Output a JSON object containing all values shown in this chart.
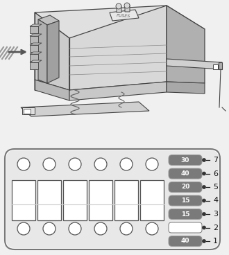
{
  "bg_color": "#f0f0f0",
  "fuses": [
    {
      "label": "30",
      "color": "#7a7a7a",
      "number": 7,
      "has_fuse": true
    },
    {
      "label": "40",
      "color": "#7a7a7a",
      "number": 6,
      "has_fuse": true
    },
    {
      "label": "20",
      "color": "#7a7a7a",
      "number": 5,
      "has_fuse": true
    },
    {
      "label": "15",
      "color": "#7a7a7a",
      "number": 4,
      "has_fuse": true
    },
    {
      "label": "15",
      "color": "#7a7a7a",
      "number": 3,
      "has_fuse": true
    },
    {
      "label": "",
      "color": "#ffffff",
      "number": 2,
      "has_fuse": false
    },
    {
      "label": "40",
      "color": "#7a7a7a",
      "number": 1,
      "has_fuse": true
    }
  ],
  "outline_color": "#444444",
  "fuse_text_color": "#ffffff",
  "line_color": "#222222",
  "number_color": "#111111",
  "box_top_face_color": "#e0e0e0",
  "box_front_face_color": "#cccccc",
  "box_right_face_color": "#b0b0b0",
  "box_left_conn_color": "#aaaaaa",
  "box_line_color": "#888888",
  "panel_bg": "#ffffff",
  "panel_border": "#777777",
  "slot_border": "#555555",
  "slot_mid_line": "#cccccc"
}
